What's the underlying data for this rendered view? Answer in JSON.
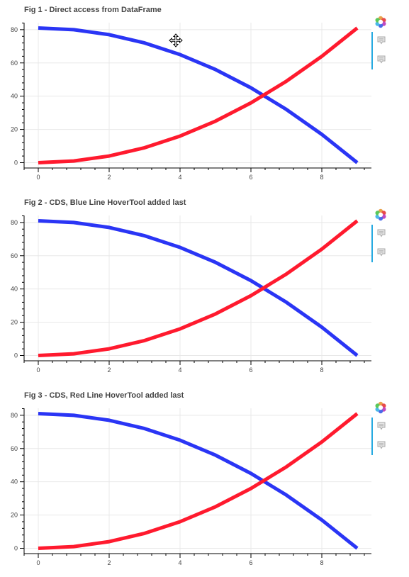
{
  "chart_data": [
    {
      "type": "line",
      "title": "Fig 1 - Direct access from DataFrame",
      "x": [
        0,
        1,
        2,
        3,
        4,
        5,
        6,
        7,
        8,
        9
      ],
      "series": [
        {
          "values": [
            81,
            80,
            77,
            72,
            65,
            56,
            45,
            32,
            17,
            0
          ],
          "color": "#2a35f5"
        },
        {
          "values": [
            0,
            1,
            4,
            9,
            16,
            25,
            36,
            49,
            64,
            81
          ],
          "color": "#ff1a2e"
        }
      ],
      "xlim": [
        -0.4,
        9.4
      ],
      "ylim": [
        -3.2,
        84.2
      ],
      "xticks": [
        0,
        2,
        4,
        6,
        8
      ],
      "yticks": [
        0,
        20,
        40,
        60,
        80
      ],
      "xtick_labels": [
        "0",
        "2",
        "4",
        "6",
        "8"
      ],
      "ytick_labels": [
        "0",
        "20",
        "40",
        "60",
        "80"
      ],
      "xlabel": "",
      "ylabel": "",
      "grid": true,
      "legend": "none"
    },
    {
      "type": "line",
      "title": "Fig 2 - CDS, Blue Line HoverTool added last",
      "x": [
        0,
        1,
        2,
        3,
        4,
        5,
        6,
        7,
        8,
        9
      ],
      "series": [
        {
          "values": [
            81,
            80,
            77,
            72,
            65,
            56,
            45,
            32,
            17,
            0
          ],
          "color": "#2a35f5"
        },
        {
          "values": [
            0,
            1,
            4,
            9,
            16,
            25,
            36,
            49,
            64,
            81
          ],
          "color": "#ff1a2e"
        }
      ],
      "xlim": [
        -0.4,
        9.4
      ],
      "ylim": [
        -3.2,
        84.2
      ],
      "xticks": [
        0,
        2,
        4,
        6,
        8
      ],
      "yticks": [
        0,
        20,
        40,
        60,
        80
      ],
      "xtick_labels": [
        "0",
        "2",
        "4",
        "6",
        "8"
      ],
      "ytick_labels": [
        "0",
        "20",
        "40",
        "60",
        "80"
      ],
      "xlabel": "",
      "ylabel": "",
      "grid": true,
      "legend": "none"
    },
    {
      "type": "line",
      "title": "Fig 3 - CDS, Red Line HoverTool added last",
      "x": [
        0,
        1,
        2,
        3,
        4,
        5,
        6,
        7,
        8,
        9
      ],
      "series": [
        {
          "values": [
            81,
            80,
            77,
            72,
            65,
            56,
            45,
            32,
            17,
            0
          ],
          "color": "#2a35f5"
        },
        {
          "values": [
            0,
            1,
            4,
            9,
            16,
            25,
            36,
            49,
            64,
            81
          ],
          "color": "#ff1a2e"
        }
      ],
      "xlim": [
        -0.4,
        9.4
      ],
      "ylim": [
        -3.2,
        84.2
      ],
      "xticks": [
        0,
        2,
        4,
        6,
        8
      ],
      "yticks": [
        0,
        20,
        40,
        60,
        80
      ],
      "xtick_labels": [
        "0",
        "2",
        "4",
        "6",
        "8"
      ],
      "ytick_labels": [
        "0",
        "20",
        "40",
        "60",
        "80"
      ],
      "xlabel": "",
      "ylabel": "",
      "grid": true,
      "legend": "none"
    }
  ],
  "toolbar": {
    "icons": [
      "bokeh-logo-icon",
      "hover-tool-icon",
      "hover-tool-icon"
    ],
    "accent_color": "#26aae1"
  },
  "cursor": {
    "icon": "move-cursor-icon"
  }
}
